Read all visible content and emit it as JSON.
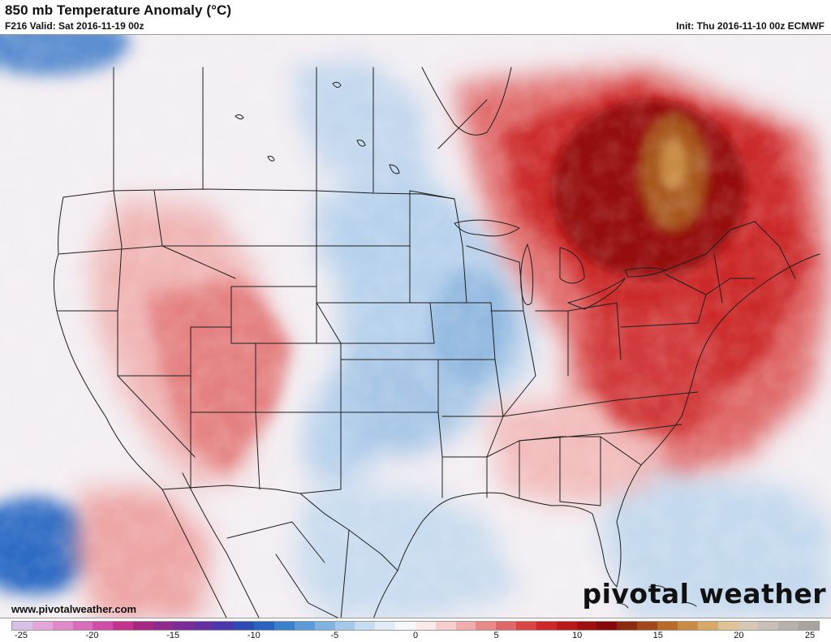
{
  "header": {
    "title": "850 mb Temperature Anomaly (°C)",
    "valid": "F216 Valid: Sat 2016-11-19 00z",
    "init": "Init: Thu 2016-11-10 00z ECMWF"
  },
  "footer": {
    "website": "www.pivotalweather.com",
    "brand": "pivotal weather"
  },
  "legend": {
    "min": -25,
    "max": 25,
    "tick_labels": [
      "-25",
      "-20",
      "-15",
      "-10",
      "-5",
      "0",
      "5",
      "10",
      "15",
      "20",
      "25"
    ],
    "tick_values": [
      -25,
      -20,
      -15,
      -10,
      -5,
      0,
      5,
      10,
      15,
      20,
      25
    ],
    "colors": [
      "#d7c1e8",
      "#e4a6d9",
      "#e08acb",
      "#d86dbb",
      "#cf4fa8",
      "#c1358f",
      "#a52883",
      "#8f2a8d",
      "#7a2d97",
      "#6330a2",
      "#4a37ab",
      "#2e4ab3",
      "#2763bf",
      "#3b7fcc",
      "#5b9ad7",
      "#80b3df",
      "#a5c9e8",
      "#c6dcf0",
      "#e2ecf7",
      "#f6f9fc",
      "#fbe9e9",
      "#f7cdcd",
      "#f0adad",
      "#e88a8a",
      "#e06767",
      "#d84545",
      "#cc2a2a",
      "#b81a1a",
      "#9e0f0f",
      "#870a0a",
      "#8b2a10",
      "#a0481b",
      "#b86a2b",
      "#c98c45",
      "#d7aa6a",
      "#dfc394",
      "#d8c8b3",
      "#c8bfb6",
      "#b8b1ab",
      "#a9a39e"
    ]
  },
  "map": {
    "palette": {
      "deep_blue": "#2763bf",
      "mid_blue": "#a5c9e8",
      "light_blue": "#d6e4f3",
      "neutral": "#f3f1f3",
      "light_red": "#f4c6c6",
      "mid_red": "#e07070",
      "red": "#d03030",
      "dark_red": "#a01414",
      "brown": "#a85a20",
      "outline": "#222222"
    }
  }
}
